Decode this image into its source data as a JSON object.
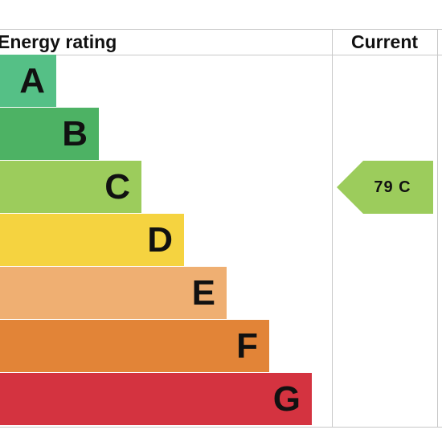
{
  "chart_data": {
    "type": "bar",
    "title": "Energy rating",
    "columns": [
      "Current"
    ],
    "bands": [
      {
        "letter": "A",
        "color": "#55c086"
      },
      {
        "letter": "B",
        "color": "#4db264"
      },
      {
        "letter": "C",
        "color": "#9ccc5c"
      },
      {
        "letter": "D",
        "color": "#f5d340"
      },
      {
        "letter": "E",
        "color": "#efaf72"
      },
      {
        "letter": "F",
        "color": "#e28437"
      },
      {
        "letter": "G",
        "color": "#d43340"
      }
    ],
    "current": {
      "value": 79,
      "band": "C",
      "label": "79 C",
      "color": "#9ccc5c"
    }
  }
}
